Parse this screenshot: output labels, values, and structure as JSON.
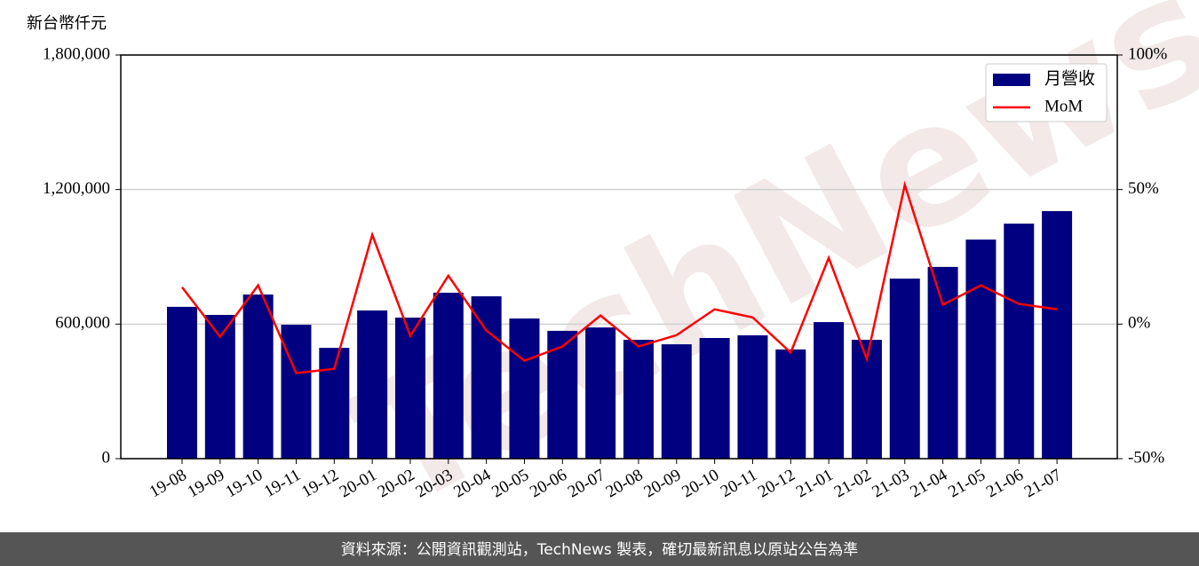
{
  "chart_data": {
    "type": "bar",
    "y_label": "新台幣仟元",
    "watermark": "TechNews",
    "footer": "資料來源：公開資訊觀測站，TechNews 製表，確切最新訊息以原站公告為準",
    "categories": [
      "19-08",
      "19-09",
      "19-10",
      "19-11",
      "19-12",
      "20-01",
      "20-02",
      "20-03",
      "20-04",
      "20-05",
      "20-06",
      "20-07",
      "20-08",
      "20-09",
      "20-10",
      "20-11",
      "20-12",
      "21-01",
      "21-02",
      "21-03",
      "21-04",
      "21-05",
      "21-06",
      "21-07"
    ],
    "series": [
      {
        "name": "月營收",
        "type": "bar",
        "color": "#000080",
        "values": [
          677000,
          641000,
          732000,
          597000,
          494000,
          661000,
          629000,
          740000,
          724000,
          625000,
          570000,
          585000,
          530000,
          510000,
          538000,
          550000,
          487000,
          609000,
          530000,
          803000,
          855000,
          977000,
          1048000,
          1104000
        ]
      },
      {
        "name": "MoM",
        "type": "line",
        "axis": "y2",
        "color": "#ff0000",
        "values": [
          13.7,
          -4.7,
          14.4,
          -18.2,
          -16.6,
          33.2,
          -4.4,
          18.0,
          -2.4,
          -13.6,
          -8.3,
          3.2,
          -8.3,
          -4.1,
          5.5,
          2.5,
          -10.6,
          24.6,
          -13.0,
          51.7,
          7.2,
          14.4,
          7.5,
          5.5
        ]
      }
    ],
    "ylim": [
      0,
      1800000
    ],
    "yticks": [
      0,
      {
        "value": 600000,
        "label": "600,000"
      },
      {
        "value": 1200000,
        "label": "1,200,000"
      },
      {
        "value": 1800000,
        "label": "1,800,000"
      }
    ],
    "y2lim": [
      -50,
      100
    ],
    "y2ticks": [
      {
        "value": -50,
        "label": "-50%"
      },
      {
        "value": 0,
        "label": "0%"
      },
      {
        "value": 50,
        "label": "50%"
      },
      {
        "value": 100,
        "label": "100%"
      }
    ],
    "grid": true,
    "legend": "upper right"
  }
}
